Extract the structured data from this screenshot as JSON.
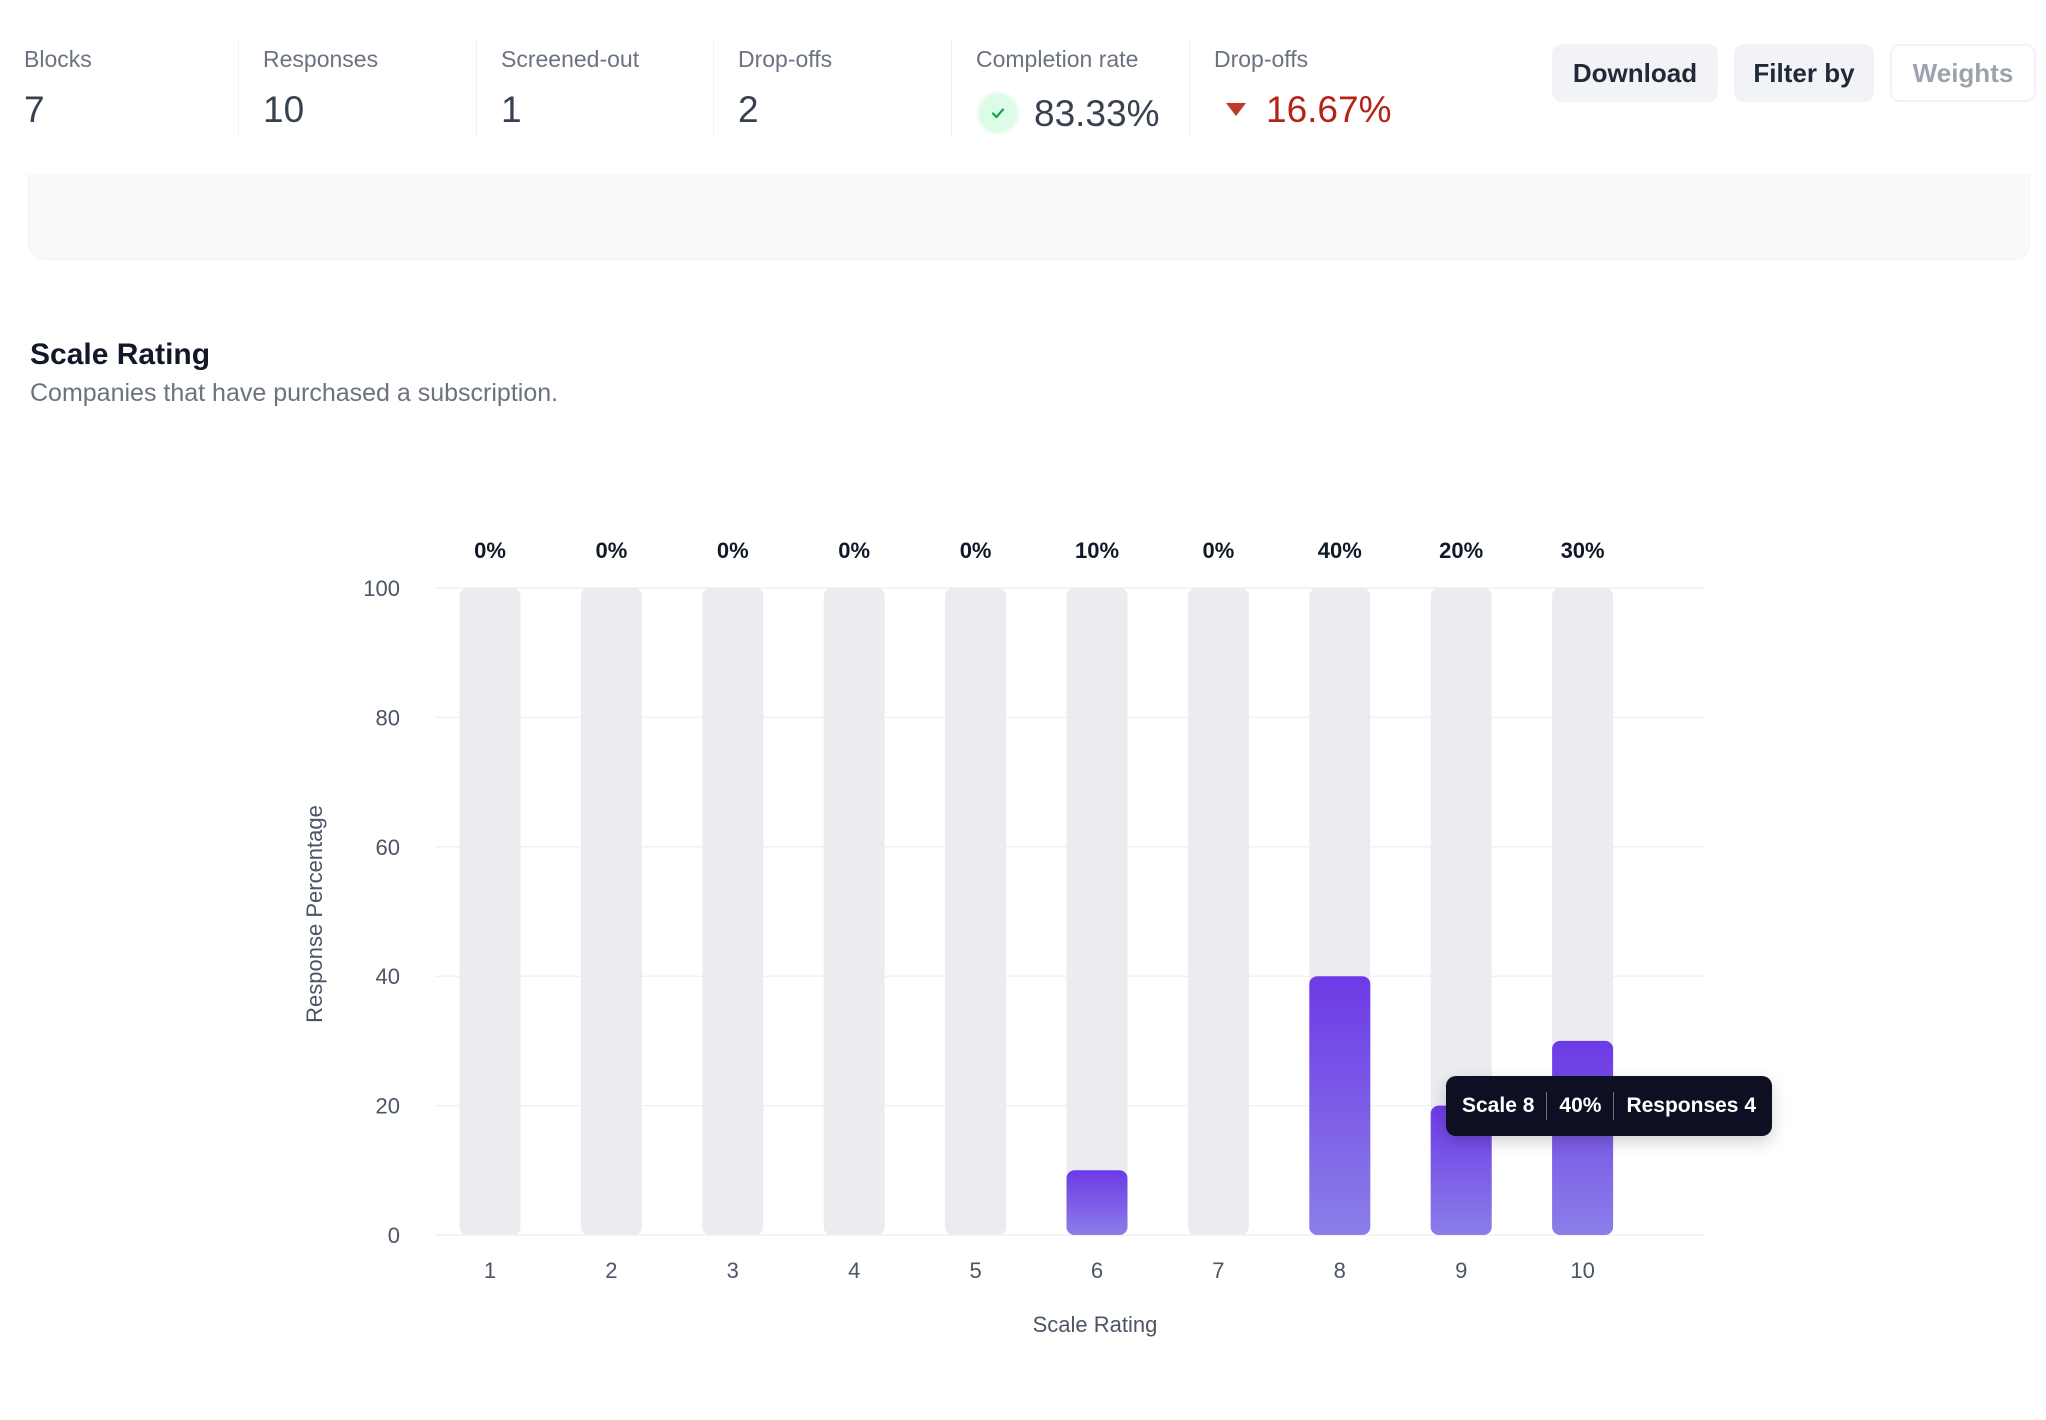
{
  "stats": [
    {
      "label": "Blocks",
      "value": "7"
    },
    {
      "label": "Responses",
      "value": "10"
    },
    {
      "label": "Screened-out",
      "value": "1"
    },
    {
      "label": "Drop-offs",
      "value": "2"
    },
    {
      "label": "Completion rate",
      "value": "83.33%"
    },
    {
      "label": "Drop-offs",
      "value": "16.67%"
    }
  ],
  "toolbar": {
    "download_label": "Download",
    "filter_label": "Filter by",
    "weights_label": "Weights"
  },
  "section": {
    "title": "Scale Rating",
    "subtitle": "Companies that have purchased a subscription."
  },
  "tooltip": {
    "scale": "Scale 8",
    "percent": "40%",
    "responses": "Responses 4"
  },
  "colors": {
    "accent": "#6d3ae6",
    "accent_light": "#8a7ee8",
    "track": "#ebecf0",
    "negative": "#b42318",
    "positive_badge": "#dcfce7"
  },
  "chart_data": {
    "type": "bar",
    "categories": [
      "1",
      "2",
      "3",
      "4",
      "5",
      "6",
      "7",
      "8",
      "9",
      "10"
    ],
    "values": [
      0,
      0,
      0,
      0,
      0,
      10,
      0,
      40,
      20,
      30
    ],
    "data_labels": [
      "0%",
      "0%",
      "0%",
      "0%",
      "0%",
      "10%",
      "0%",
      "40%",
      "20%",
      "30%"
    ],
    "xlabel": "Scale Rating",
    "ylabel": "Response Percentage",
    "ylim": [
      0,
      100
    ],
    "yticks": [
      0,
      20,
      40,
      60,
      80,
      100
    ],
    "grid": true,
    "legend": "none"
  }
}
